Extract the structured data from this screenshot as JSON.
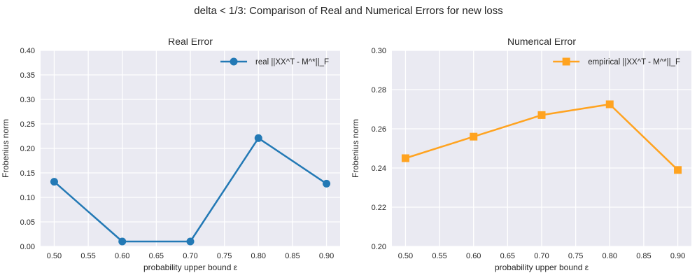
{
  "figure": {
    "title": "delta < 1/3: Comparison of Real and Numerical Errors for new loss"
  },
  "colors": {
    "figure_background": "#ffffff",
    "plot_background": "#eaeaf2",
    "grid": "#ffffff",
    "text": "#262626",
    "real_series": "#2379b5",
    "empirical_series": "#ffa320"
  },
  "chart_data": [
    {
      "type": "line",
      "title": "Real Error",
      "xlabel": "probability upper bound ε",
      "ylabel": "Frobenius norm",
      "series": [
        {
          "name": "real ||XX^T - M^*||_F",
          "x": [
            0.5,
            0.6,
            0.7,
            0.8,
            0.9
          ],
          "values": [
            0.132,
            0.01,
            0.01,
            0.221,
            0.128
          ],
          "color": "#2379b5",
          "marker": "circle"
        }
      ],
      "xlim": [
        0.48,
        0.92
      ],
      "ylim": [
        0.0,
        0.4
      ],
      "xticks": [
        0.5,
        0.55,
        0.6,
        0.65,
        0.7,
        0.75,
        0.8,
        0.85,
        0.9
      ],
      "xtick_labels": [
        "0.50",
        "0.55",
        "0.60",
        "0.65",
        "0.70",
        "0.75",
        "0.80",
        "0.85",
        "0.90"
      ],
      "yticks": [
        0.0,
        0.05,
        0.1,
        0.15,
        0.2,
        0.25,
        0.3,
        0.35,
        0.4
      ],
      "ytick_labels": [
        "0.00",
        "0.05",
        "0.10",
        "0.15",
        "0.20",
        "0.25",
        "0.30",
        "0.35",
        "0.40"
      ],
      "grid": true,
      "legend_position": "upper right"
    },
    {
      "type": "line",
      "title": "Numerical Error",
      "xlabel": "probability upper bound ε",
      "ylabel": "Frobenius norm",
      "series": [
        {
          "name": "empirical ||XX^T - M^*||_F",
          "x": [
            0.5,
            0.6,
            0.7,
            0.8,
            0.9
          ],
          "values": [
            0.245,
            0.256,
            0.267,
            0.2725,
            0.239
          ],
          "color": "#ffa320",
          "marker": "square"
        }
      ],
      "xlim": [
        0.48,
        0.92
      ],
      "ylim": [
        0.2,
        0.3
      ],
      "xticks": [
        0.5,
        0.55,
        0.6,
        0.65,
        0.7,
        0.75,
        0.8,
        0.85,
        0.9
      ],
      "xtick_labels": [
        "0.50",
        "0.55",
        "0.60",
        "0.65",
        "0.70",
        "0.75",
        "0.80",
        "0.85",
        "0.90"
      ],
      "yticks": [
        0.2,
        0.22,
        0.24,
        0.26,
        0.28,
        0.3
      ],
      "ytick_labels": [
        "0.20",
        "0.22",
        "0.24",
        "0.26",
        "0.28",
        "0.30"
      ],
      "grid": true,
      "legend_position": "upper right"
    }
  ]
}
